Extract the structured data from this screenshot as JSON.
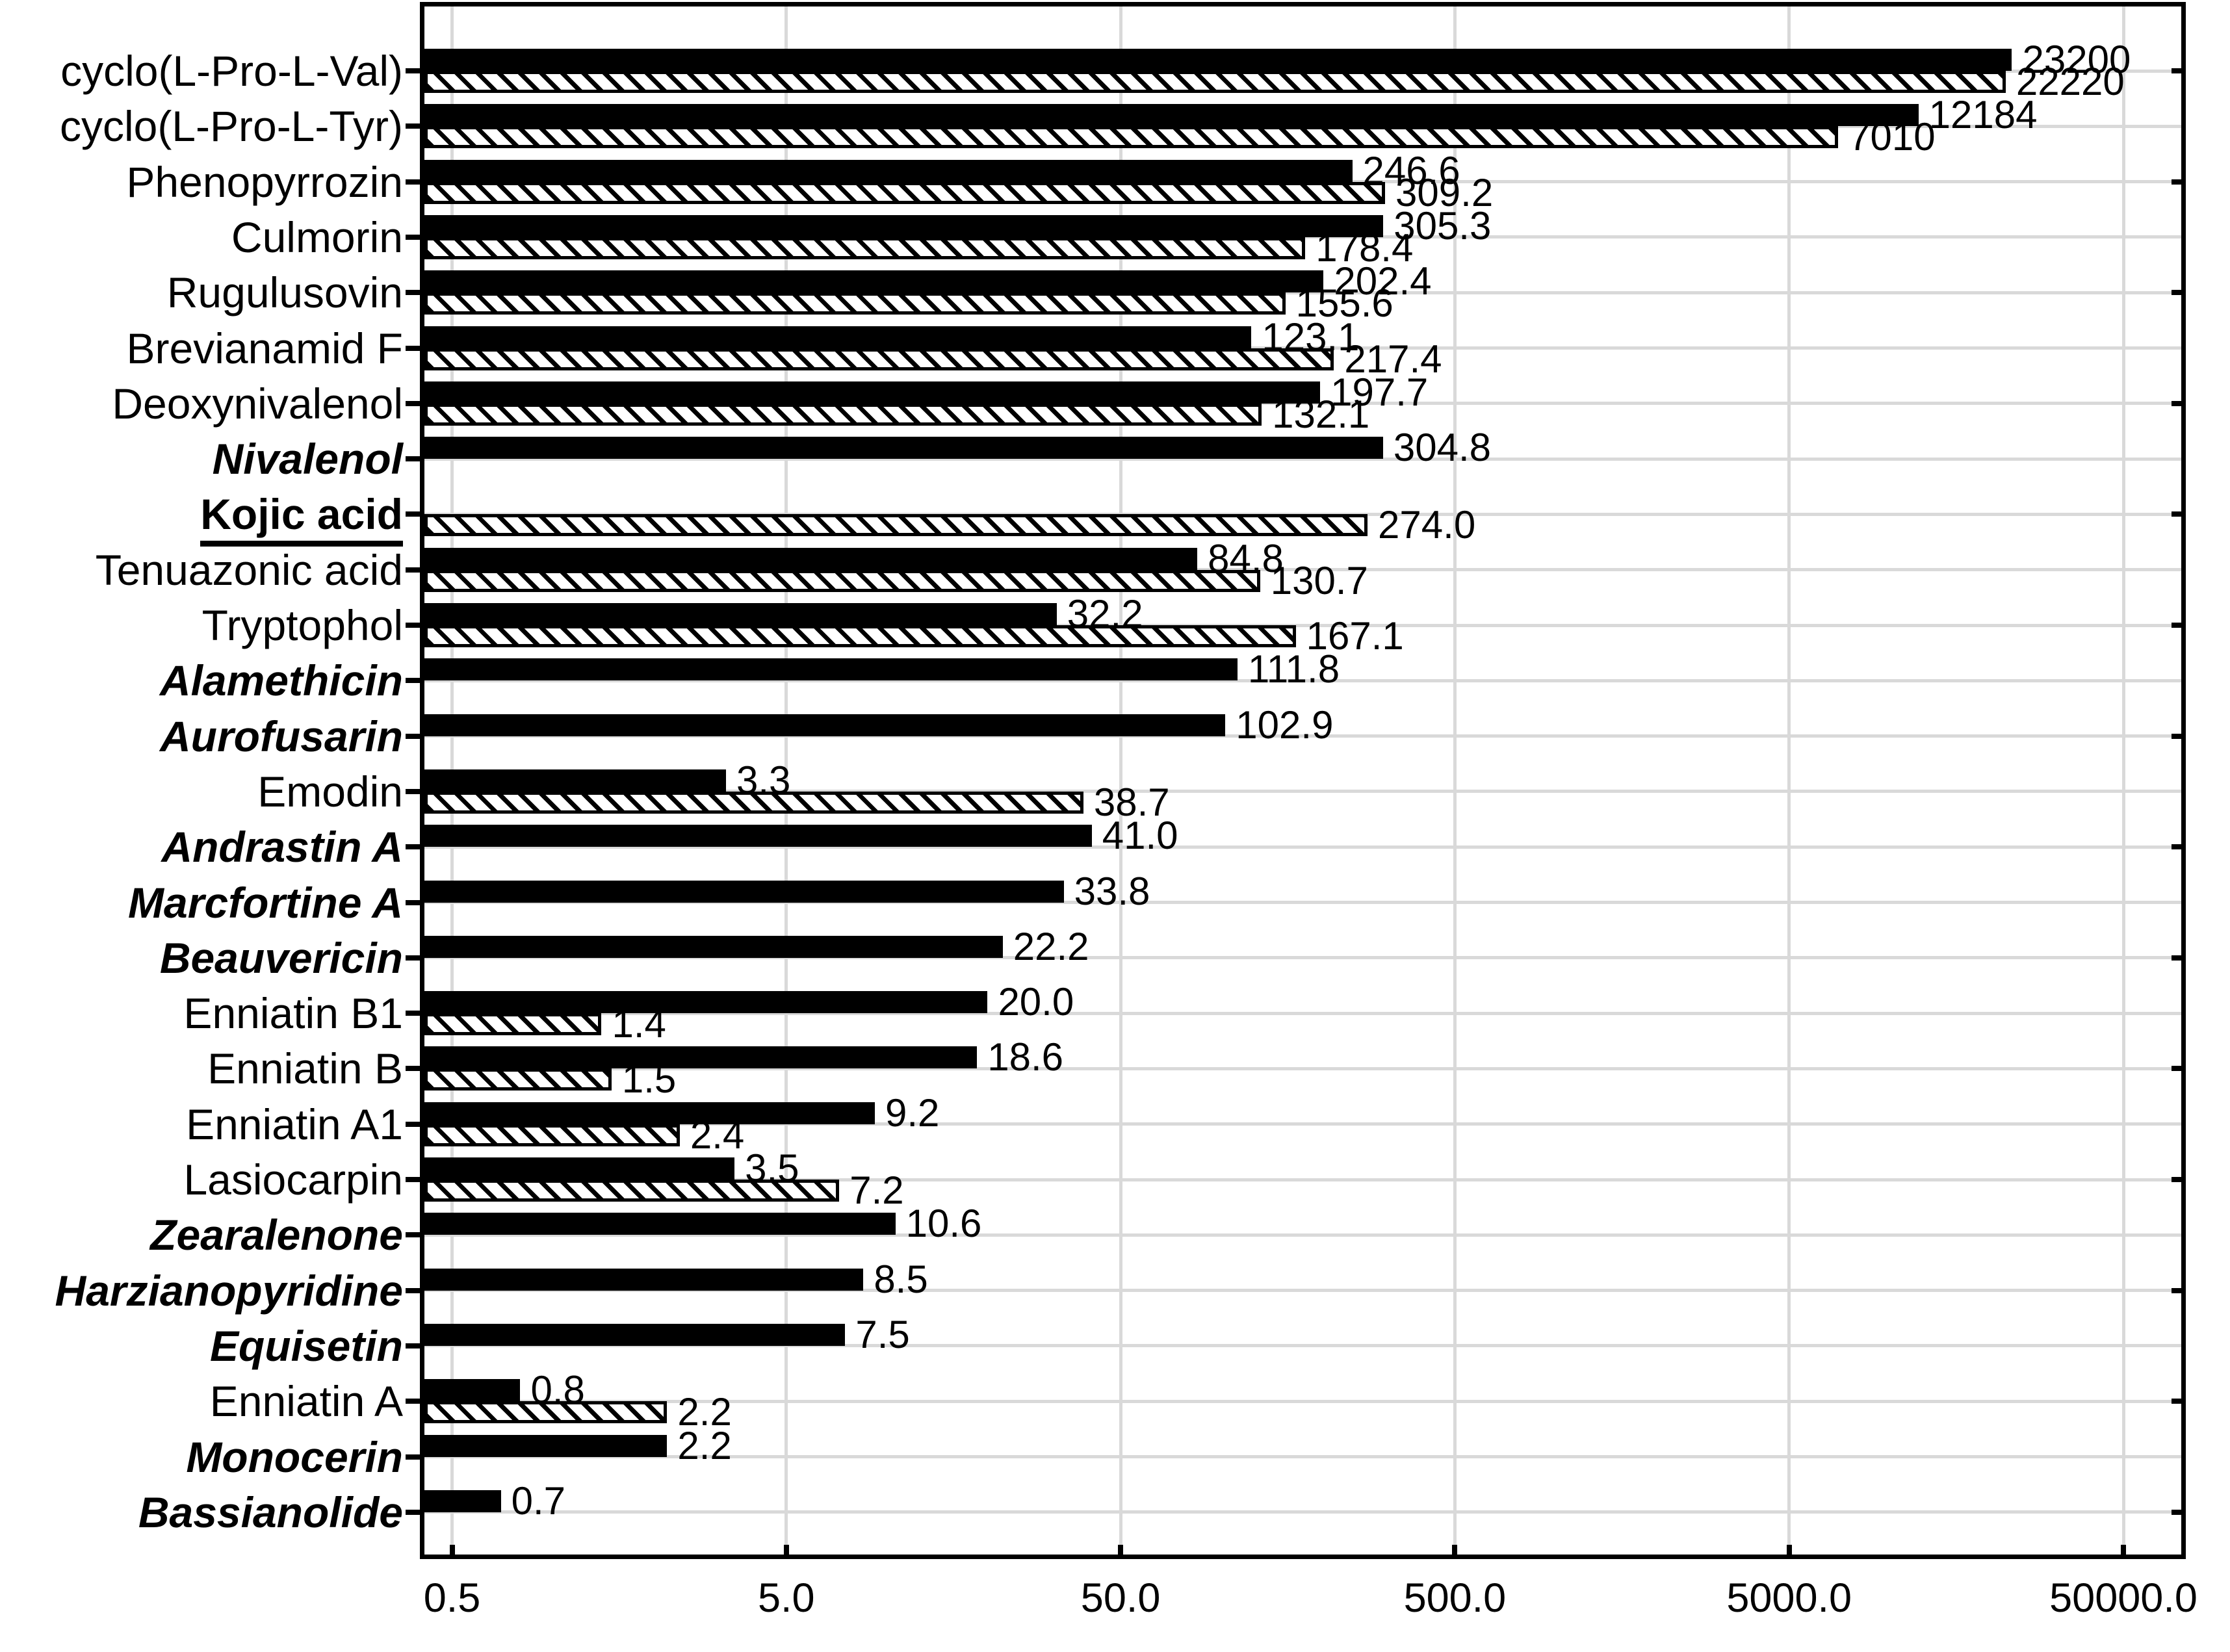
{
  "chart_data": {
    "type": "bar",
    "orientation": "horizontal",
    "x_scale": "log",
    "grid": "on",
    "title": "",
    "xlabel": "",
    "ylabel": "",
    "xlim": [
      0.41,
      74000
    ],
    "x_ticks": [
      {
        "value": 0.5,
        "label": "0.5"
      },
      {
        "value": 5,
        "label": "5.0"
      },
      {
        "value": 50,
        "label": "50.0"
      },
      {
        "value": 500,
        "label": "500.0"
      },
      {
        "value": 5000,
        "label": "5000.0"
      },
      {
        "value": 50000,
        "label": "50000.0"
      }
    ],
    "series_styles": [
      {
        "name": "solid-black-bar",
        "fill": "#000000"
      },
      {
        "name": "diagonal-hatched-bar",
        "fill": "#ffffff",
        "hatch": "#000000"
      }
    ],
    "colors": {
      "bar": "#000000",
      "gridline": "#d9d9d9",
      "text": "#000000",
      "background": "#ffffff"
    },
    "categories": [
      {
        "label": "cyclo(L-Pro-L-Val)",
        "style": "normal",
        "solid": "23200",
        "hatched": "22220"
      },
      {
        "label": "cyclo(L-Pro-L-Tyr)",
        "style": "normal",
        "solid": "12184",
        "hatched": "7010"
      },
      {
        "label": "Phenopyrrozin",
        "style": "normal",
        "solid": "246.6",
        "hatched": "309.2"
      },
      {
        "label": "Culmorin",
        "style": "normal",
        "solid": "305.3",
        "hatched": "178.4"
      },
      {
        "label": "Rugulusovin",
        "style": "normal",
        "solid": "202.4",
        "hatched": "155.6"
      },
      {
        "label": "Brevianamid F",
        "style": "normal",
        "solid": "123.1",
        "hatched": "217.4"
      },
      {
        "label": "Deoxynivalenol",
        "style": "normal",
        "solid": "197.7",
        "hatched": "132.1"
      },
      {
        "label": "Nivalenol",
        "style": "bold-italic",
        "solid": "304.8",
        "hatched": null
      },
      {
        "label": "Kojic acid",
        "style": "bold-underline",
        "solid": null,
        "hatched": "274.0"
      },
      {
        "label": "Tenuazonic acid",
        "style": "normal",
        "solid": "84.8",
        "hatched": "130.7"
      },
      {
        "label": "Tryptophol",
        "style": "normal",
        "solid": "32.2",
        "hatched": "167.1"
      },
      {
        "label": "Alamethicin",
        "style": "bold-italic",
        "solid": "111.8",
        "hatched": null
      },
      {
        "label": "Aurofusarin",
        "style": "bold-italic",
        "solid": "102.9",
        "hatched": null
      },
      {
        "label": "Emodin",
        "style": "normal",
        "solid": "3.3",
        "hatched": "38.7"
      },
      {
        "label": "Andrastin A",
        "style": "bold-italic",
        "solid": "41.0",
        "hatched": null
      },
      {
        "label": "Marcfortine A",
        "style": "bold-italic",
        "solid": "33.8",
        "hatched": null
      },
      {
        "label": "Beauvericin",
        "style": "bold-italic",
        "solid": "22.2",
        "hatched": null
      },
      {
        "label": "Enniatin B1",
        "style": "normal",
        "solid": "20.0",
        "hatched": "1.4"
      },
      {
        "label": "Enniatin B",
        "style": "normal",
        "solid": "18.6",
        "hatched": "1.5"
      },
      {
        "label": "Enniatin A1",
        "style": "normal",
        "solid": "9.2",
        "hatched": "2.4"
      },
      {
        "label": "Lasiocarpin",
        "style": "normal",
        "solid": "3.5",
        "hatched": "7.2"
      },
      {
        "label": "Zearalenone",
        "style": "bold-italic",
        "solid": "10.6",
        "hatched": null
      },
      {
        "label": "Harzianopyridine",
        "style": "bold-italic",
        "solid": "8.5",
        "hatched": null
      },
      {
        "label": "Equisetin",
        "style": "bold-italic",
        "solid": "7.5",
        "hatched": null
      },
      {
        "label": "Enniatin A",
        "style": "normal",
        "solid": "0.8",
        "hatched": "2.2"
      },
      {
        "label": "Monocerin",
        "style": "bold-italic",
        "solid": "2.2",
        "hatched": null
      },
      {
        "label": "Bassianolide",
        "style": "bold-italic",
        "solid": "0.7",
        "hatched": null
      }
    ]
  }
}
